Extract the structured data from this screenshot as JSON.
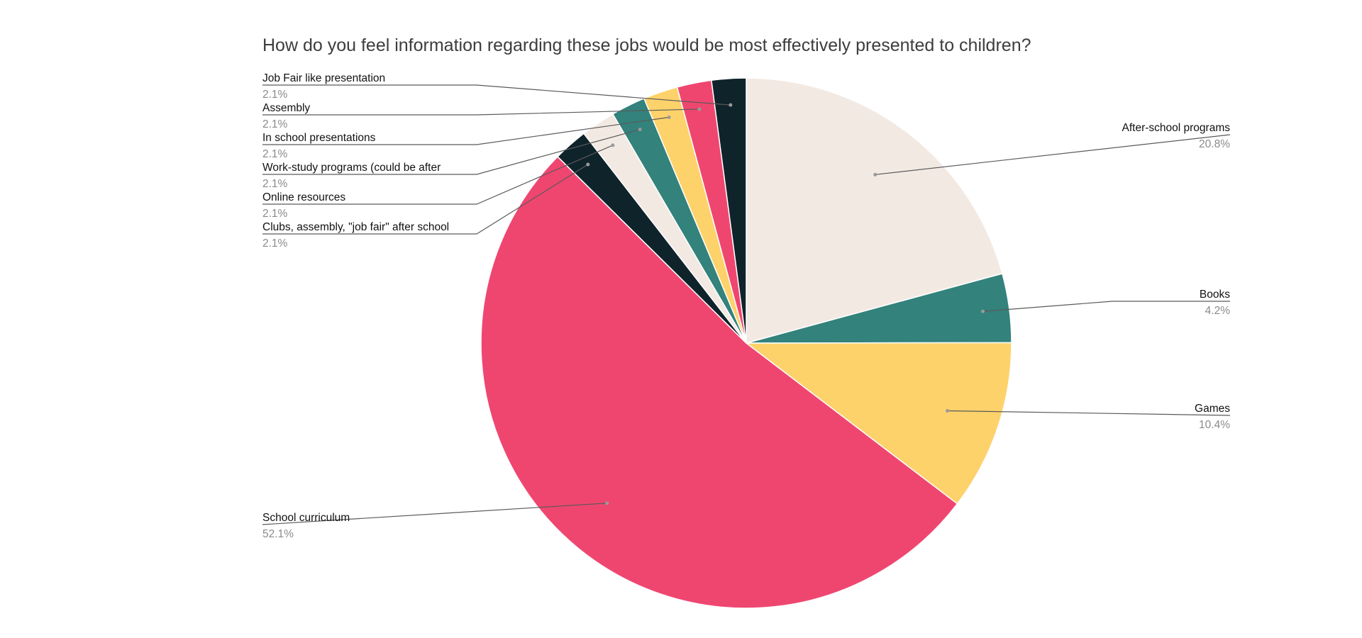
{
  "chart_data": {
    "type": "pie",
    "title": "How do you feel information regarding these jobs would be most effectively presented to children?",
    "start_angle_deg": 0,
    "direction": "clockwise",
    "slices": [
      {
        "label": "After-school programs",
        "value": 20.8,
        "display": "20.8%",
        "color": "#f3e9e3",
        "side": "right"
      },
      {
        "label": "Books",
        "value": 4.2,
        "display": "4.2%",
        "color": "#33827c",
        "side": "right"
      },
      {
        "label": "Games",
        "value": 10.4,
        "display": "10.4%",
        "color": "#fdd26b",
        "side": "right"
      },
      {
        "label": "School curriculum",
        "value": 52.1,
        "display": "52.1%",
        "color": "#ef4670",
        "side": "left"
      },
      {
        "label": "Clubs, assembly, \"job fair\" after school",
        "value": 2.1,
        "display": "2.1%",
        "color": "#0f232b",
        "side": "left"
      },
      {
        "label": "Online resources",
        "value": 2.1,
        "display": "2.1%",
        "color": "#f3e9e3",
        "side": "left"
      },
      {
        "label": "Work-study programs (could be after",
        "value": 2.1,
        "display": "2.1%",
        "color": "#33827c",
        "side": "left"
      },
      {
        "label": "In school presentations",
        "value": 2.1,
        "display": "2.1%",
        "color": "#fdd26b",
        "side": "left"
      },
      {
        "label": "Assembly",
        "value": 2.1,
        "display": "2.1%",
        "color": "#ef4670",
        "side": "left"
      },
      {
        "label": "Job Fair like presentation",
        "value": 2.1,
        "display": "2.1%",
        "color": "#0f232b",
        "side": "left"
      }
    ]
  }
}
